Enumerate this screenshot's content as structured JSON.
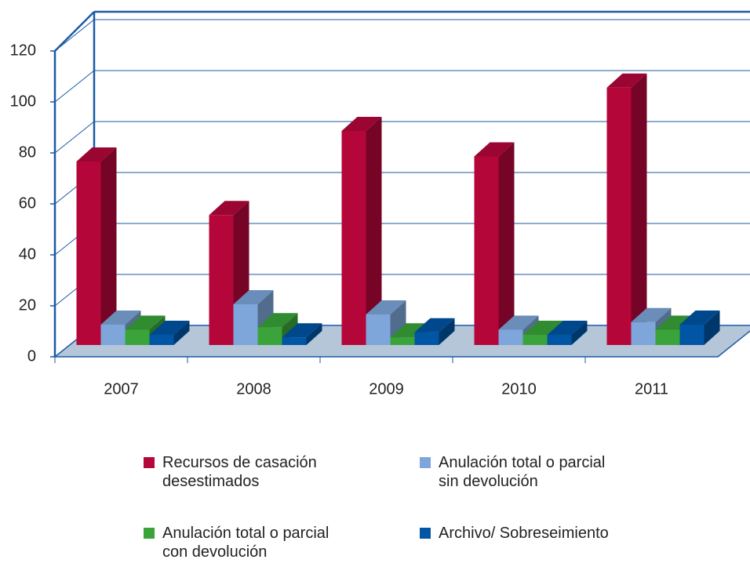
{
  "chart_data": {
    "type": "bar3d",
    "categories": [
      "2007",
      "2008",
      "2009",
      "2010",
      "2011"
    ],
    "series": [
      {
        "name": "Recursos de casación desestimados",
        "color": "#b5063a",
        "values": [
          72,
          51,
          84,
          74,
          101
        ]
      },
      {
        "name": "Anulación total o parcial sin devolución",
        "color": "#7ea6db",
        "values": [
          8,
          16,
          12,
          6,
          9
        ]
      },
      {
        "name": "Anulación total o parcial con devolución",
        "color": "#3aa43a",
        "values": [
          6,
          7,
          3,
          4,
          6
        ]
      },
      {
        "name": "Archivo/ Sobreseimiento",
        "color": "#0055a5",
        "values": [
          4,
          3,
          5,
          4,
          8
        ]
      }
    ],
    "ylim": [
      0,
      120
    ],
    "yticks": [
      0,
      20,
      40,
      60,
      80,
      100,
      120
    ],
    "grid": true
  }
}
